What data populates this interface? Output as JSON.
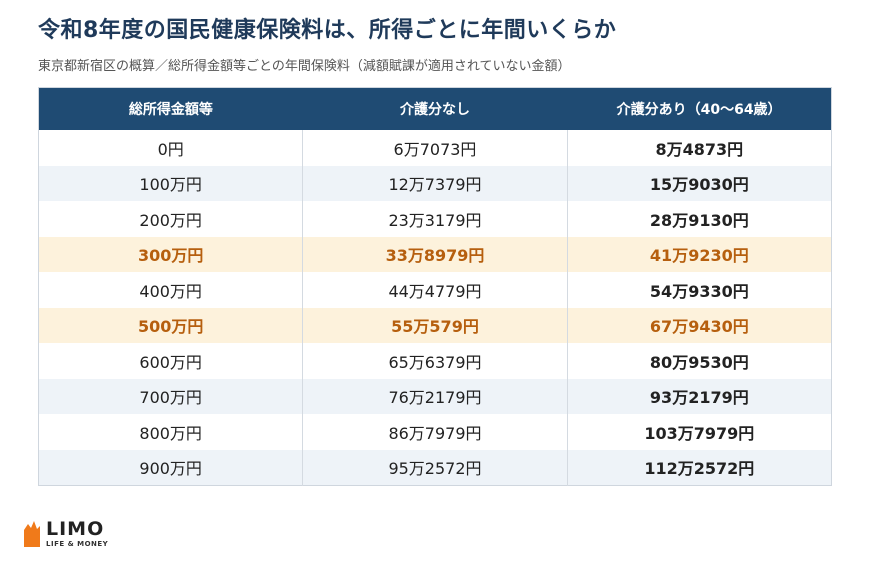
{
  "header": {
    "title": "令和8年度の国民健康保険料は、所得ごとに年間いくらか",
    "subtitle": "東京都新宿区の概算／総所得金額等ごとの年間保険料（減額賦課が適用されていない金額）"
  },
  "table": {
    "columns": [
      "総所得金額等",
      "介護分なし",
      "介護分あり（40〜64歳）"
    ],
    "rows": [
      {
        "income": "0円",
        "without_care": "6万7073円",
        "with_care": "8万4873円",
        "highlight": false
      },
      {
        "income": "100万円",
        "without_care": "12万7379円",
        "with_care": "15万9030円",
        "highlight": false
      },
      {
        "income": "200万円",
        "without_care": "23万3179円",
        "with_care": "28万9130円",
        "highlight": false
      },
      {
        "income": "300万円",
        "without_care": "33万8979円",
        "with_care": "41万9230円",
        "highlight": true
      },
      {
        "income": "400万円",
        "without_care": "44万4779円",
        "with_care": "54万9330円",
        "highlight": false
      },
      {
        "income": "500万円",
        "without_care": "55万579円",
        "with_care": "67万9430円",
        "highlight": true
      },
      {
        "income": "600万円",
        "without_care": "65万6379円",
        "with_care": "80万9530円",
        "highlight": false
      },
      {
        "income": "700万円",
        "without_care": "76万2179円",
        "with_care": "93万2179円",
        "highlight": false
      },
      {
        "income": "800万円",
        "without_care": "86万7979円",
        "with_care": "103万7979円",
        "highlight": false
      },
      {
        "income": "900万円",
        "without_care": "95万2572円",
        "with_care": "112万2572円",
        "highlight": false
      }
    ]
  },
  "logo": {
    "name": "LIMO",
    "tagline": "LIFE & MONEY",
    "accent_color": "#f07a1a"
  },
  "colors": {
    "header_bg": "#1f4b73",
    "highlight_bg": "#fdf2dc",
    "highlight_text": "#b65f0e",
    "alt_row_bg": "#eef3f8"
  }
}
